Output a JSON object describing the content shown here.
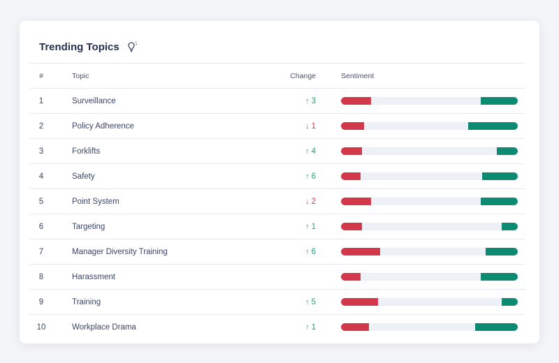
{
  "card": {
    "title": "Trending Topics",
    "icon": "lightbulb-icon"
  },
  "table": {
    "headers": {
      "num": "#",
      "topic": "Topic",
      "change": "Change",
      "sentiment": "Sentiment"
    },
    "rows": [
      {
        "num": "1",
        "topic": "Surveillance",
        "change": "3",
        "direction": "up",
        "negative": 0.17,
        "positive": 0.21
      },
      {
        "num": "2",
        "topic": "Policy Adherence",
        "change": "1",
        "direction": "down",
        "negative": 0.13,
        "positive": 0.28
      },
      {
        "num": "3",
        "topic": "Forklifts",
        "change": "4",
        "direction": "up",
        "negative": 0.12,
        "positive": 0.12
      },
      {
        "num": "4",
        "topic": "Safety",
        "change": "6",
        "direction": "up",
        "negative": 0.11,
        "positive": 0.2
      },
      {
        "num": "5",
        "topic": "Point System",
        "change": "2",
        "direction": "down",
        "negative": 0.17,
        "positive": 0.21
      },
      {
        "num": "6",
        "topic": "Targeting",
        "change": "1",
        "direction": "up",
        "negative": 0.12,
        "positive": 0.09
      },
      {
        "num": "7",
        "topic": "Manager Diversity Training",
        "change": "6",
        "direction": "up",
        "negative": 0.22,
        "positive": 0.18
      },
      {
        "num": "8",
        "topic": "Harassment",
        "change": "",
        "direction": "",
        "negative": 0.11,
        "positive": 0.21
      },
      {
        "num": "9",
        "topic": "Training",
        "change": "5",
        "direction": "up",
        "negative": 0.21,
        "positive": 0.09
      },
      {
        "num": "10",
        "topic": "Workplace Drama",
        "change": "1",
        "direction": "up",
        "negative": 0.16,
        "positive": 0.24
      }
    ]
  },
  "colors": {
    "up": "#22a07a",
    "down": "#d3374a",
    "negative_bar": "#d3374a",
    "positive_bar": "#0c8a72",
    "bar_track": "#eef0f8"
  }
}
